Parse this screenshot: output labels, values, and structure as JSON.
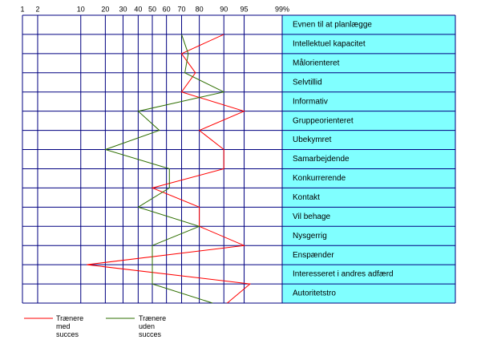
{
  "chart_data": {
    "type": "profile",
    "scale": "probit",
    "categories": [
      "Evnen til at planlægge",
      "Intellektuel kapacitet",
      "Målorienteret",
      "Selvtillid",
      "Informativ",
      "Gruppeorienteret",
      "Ubekymret",
      "Samarbejdende",
      "Konkurrerende",
      "Kontakt",
      "Vil behage",
      "Nysgerrig",
      "Enspænder",
      "Interesseret i andres adfærd",
      "Autoritetstro"
    ],
    "series": [
      {
        "name": "Trænere med succes",
        "color": "#ff0000",
        "values": [
          90,
          70,
          78,
          70,
          95,
          80,
          90,
          90,
          50,
          80,
          80,
          95,
          12,
          96,
          91
        ]
      },
      {
        "name": "Trænere uden succes",
        "color": "#2e6f00",
        "values": [
          70,
          74,
          72,
          90,
          40,
          55,
          20,
          62,
          62,
          40,
          80,
          50,
          50,
          50,
          86
        ]
      }
    ],
    "xlim": [
      1,
      99
    ],
    "xticks": [
      1,
      2,
      10,
      20,
      30,
      40,
      50,
      60,
      70,
      80,
      90,
      95,
      {
        "value": 99,
        "label": "99%"
      }
    ],
    "grid": true,
    "label_color": "#80ffff",
    "grid_color": "#000080"
  }
}
